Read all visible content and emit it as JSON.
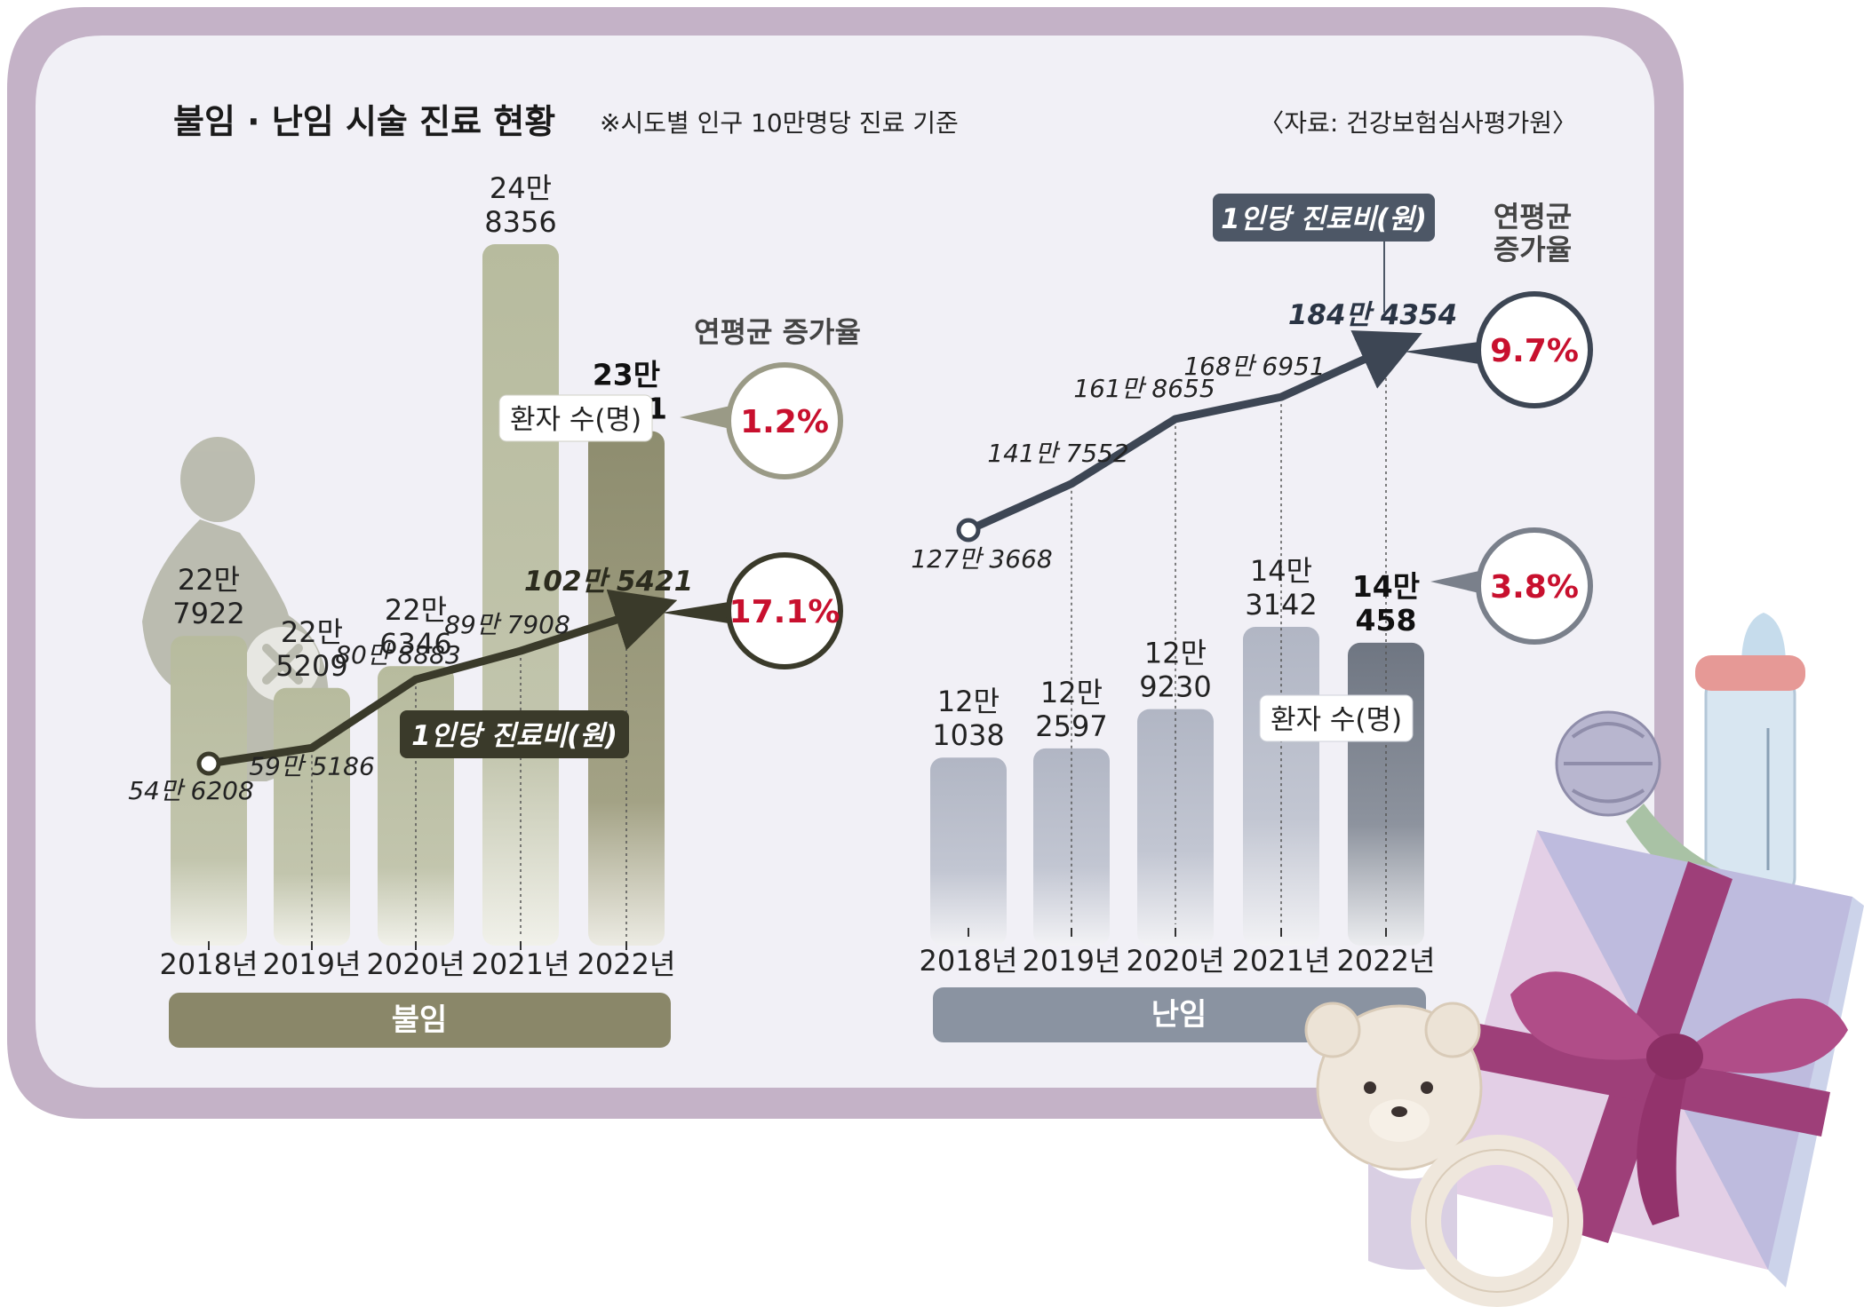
{
  "title": "불임 · 난임 시술 진료 현황",
  "note": "※시도별 인구 10만명당 진료 기준",
  "source": "〈자료: 건강보험심사평가원〉",
  "growth_label": "연평균 증가율",
  "growth_label_right": [
    "연평균",
    "증가율"
  ],
  "patients_label": "환자 수(명)",
  "cost_label": "1인당 진료비(원)",
  "colors": {
    "infertility_bar": "#b7bb9e",
    "infertility_bar_last": "#8e8d6f",
    "infertility_line": "#3a3a2a",
    "infertility_band": "#8a8769",
    "subfertility_bar": "#b5bac7",
    "subfertility_bar_last": "#737a86",
    "subfertility_line": "#3d4654",
    "subfertility_band": "#8a93a1",
    "frame": "#c4b2c7",
    "growth_text": "#c8102e"
  },
  "chart_data": [
    {
      "type": "bar",
      "panel": "불임",
      "categories": [
        "2018년",
        "2019년",
        "2020년",
        "2021년",
        "2022년"
      ],
      "series": [
        {
          "name": "환자 수(명)",
          "type": "bar",
          "values": [
            227922,
            225209,
            226346,
            248356,
            238601
          ],
          "labels": [
            [
              "22만",
              "7922"
            ],
            [
              "22만",
              "5209"
            ],
            [
              "22만",
              "6346"
            ],
            [
              "24만",
              "8356"
            ],
            [
              "23만",
              "8601"
            ]
          ],
          "growth": "1.2%"
        },
        {
          "name": "1인당 진료비(원)",
          "type": "line",
          "values": [
            546208,
            595186,
            808883,
            897908,
            1025421
          ],
          "labels": [
            "54만 6208",
            "59만 5186",
            "80만 8883",
            "89만 7908",
            "102만 5421"
          ],
          "growth": "17.1%"
        }
      ]
    },
    {
      "type": "bar",
      "panel": "난임",
      "categories": [
        "2018년",
        "2019년",
        "2020년",
        "2021년",
        "2022년"
      ],
      "series": [
        {
          "name": "환자 수(명)",
          "type": "bar",
          "values": [
            121038,
            122597,
            129230,
            143142,
            140458
          ],
          "labels": [
            [
              "12만",
              "1038"
            ],
            [
              "12만",
              "2597"
            ],
            [
              "12만",
              "9230"
            ],
            [
              "14만",
              "3142"
            ],
            [
              "14만",
              "458"
            ]
          ],
          "growth": "3.8%"
        },
        {
          "name": "1인당 진료비(원)",
          "type": "line",
          "values": [
            1273668,
            1417552,
            1618655,
            1686951,
            1844354
          ],
          "labels": [
            "127만 3668",
            "141만 7552",
            "161만 8655",
            "168만 6951",
            "184만 4354"
          ],
          "growth": "9.7%"
        }
      ]
    }
  ]
}
